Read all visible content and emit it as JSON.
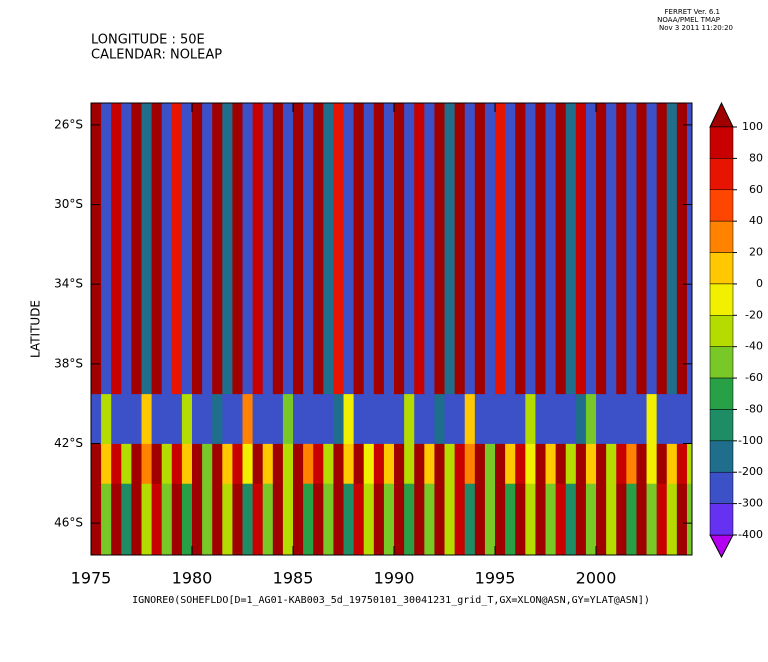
{
  "chart_data": {
    "type": "heatmap",
    "header": [
      "LONGITUDE : 50E",
      "CALENDAR: NOLEAP"
    ],
    "stamp": [
      "FERRET Ver. 6.1",
      "NOAA/PMEL TMAP",
      "Nov  3 2011 11:20:20"
    ],
    "x_label": "IGNORE0(SOHEFLDO[D=1_AG01-KAB003_5d_19750101_30041231_grid_T,GX=XLON@ASN,GY=YLAT@ASN])",
    "y_label": "LATITUDE",
    "xlim": [
      1975,
      2004.75
    ],
    "ylim": [
      -47.6,
      -24.9
    ],
    "xticks": [
      1975,
      1980,
      1985,
      1990,
      1995,
      2000
    ],
    "yticks": [
      {
        "value": -26,
        "label": "26°S"
      },
      {
        "value": -30,
        "label": "30°S"
      },
      {
        "value": -34,
        "label": "34°S"
      },
      {
        "value": -38,
        "label": "38°S"
      },
      {
        "value": -42,
        "label": "42°S"
      },
      {
        "value": -46,
        "label": "46°S"
      }
    ],
    "xbins": [
      1975,
      1975.5,
      1976,
      1976.5,
      1977,
      1977.5,
      1978,
      1978.5,
      1979,
      1979.5,
      1980,
      1980.5,
      1981,
      1981.5,
      1982,
      1982.5,
      1983,
      1983.5,
      1984,
      1984.5,
      1985,
      1985.5,
      1986,
      1986.5,
      1987,
      1987.5,
      1988,
      1988.5,
      1989,
      1989.5,
      1990,
      1990.5,
      1991,
      1991.5,
      1992,
      1992.5,
      1993,
      1993.5,
      1994,
      1994.5,
      1995,
      1995.5,
      1996,
      1996.5,
      1997,
      1997.5,
      1998,
      1998.5,
      1999,
      1999.5,
      2000,
      2000.5,
      2001,
      2001.5,
      2002,
      2002.5,
      2003,
      2003.5,
      2004,
      2004.5,
      2004.75
    ],
    "ybins": [
      -47.6,
      -44,
      -42,
      -39.5,
      -24.9
    ],
    "values": [
      [
        120,
        -60,
        120,
        -100,
        120,
        -40,
        90,
        -60,
        120,
        -80,
        120,
        -60,
        120,
        -40,
        120,
        -100,
        90,
        -60,
        120,
        -40,
        120,
        -80,
        120,
        -60,
        120,
        -100,
        90,
        -40,
        120,
        -60,
        120,
        -80,
        120,
        -60,
        120,
        -40,
        90,
        -100,
        120,
        -60,
        120,
        -80,
        120,
        -40,
        120,
        -60,
        90,
        -100,
        120,
        -60,
        120,
        -40,
        120,
        -80,
        120,
        -60,
        90,
        -40,
        120,
        -60
      ],
      [
        120,
        0,
        90,
        -40,
        120,
        20,
        120,
        -30,
        100,
        0,
        120,
        -60,
        120,
        10,
        90,
        -20,
        120,
        0,
        120,
        -40,
        120,
        20,
        100,
        -30,
        120,
        0,
        120,
        -20,
        90,
        10,
        120,
        -40,
        120,
        0,
        120,
        -30,
        100,
        20,
        120,
        -60,
        120,
        0,
        90,
        -20,
        120,
        10,
        120,
        -40,
        120,
        0,
        120,
        -30,
        100,
        20,
        120,
        -20,
        120,
        0,
        90,
        -40
      ],
      [
        -250,
        -40,
        -300,
        -250,
        -250,
        10,
        -300,
        -250,
        -250,
        -30,
        -250,
        -300,
        -200,
        -250,
        -300,
        20,
        -250,
        -250,
        -300,
        -60,
        -250,
        -250,
        -300,
        -250,
        -200,
        -20,
        -250,
        -300,
        -250,
        -250,
        -300,
        -40,
        -250,
        -250,
        -200,
        -300,
        -250,
        0,
        -250,
        -250,
        -300,
        -250,
        -250,
        -30,
        -250,
        -300,
        -250,
        -250,
        -200,
        -60,
        -250,
        -300,
        -250,
        -250,
        -300,
        -20,
        -250,
        -250,
        -300,
        -250
      ],
      [
        120,
        -250,
        90,
        -300,
        120,
        -200,
        120,
        -250,
        60,
        -300,
        120,
        -250,
        120,
        -150,
        120,
        -300,
        90,
        -250,
        120,
        -250,
        120,
        -300,
        120,
        -200,
        70,
        -250,
        120,
        -300,
        120,
        -250,
        120,
        -250,
        90,
        -300,
        120,
        -200,
        120,
        -250,
        120,
        -300,
        60,
        -250,
        120,
        -250,
        120,
        -300,
        120,
        -200,
        90,
        -250,
        120,
        -300,
        120,
        -250,
        120,
        -250,
        120,
        -150,
        120,
        -250
      ]
    ],
    "colorbar": {
      "levels": [
        100,
        80,
        60,
        40,
        20,
        0,
        -20,
        -40,
        -60,
        -80,
        -100,
        -200,
        -300,
        -400
      ],
      "colors": [
        "#c80000",
        "#e61400",
        "#ff4600",
        "#ff8200",
        "#ffc800",
        "#f0f000",
        "#b4dc00",
        "#78c828",
        "#28a046",
        "#1e8c64",
        "#1e6e8c",
        "#3c50c8",
        "#6432f0"
      ],
      "over": "#a00000",
      "under": "#b400f0"
    }
  }
}
